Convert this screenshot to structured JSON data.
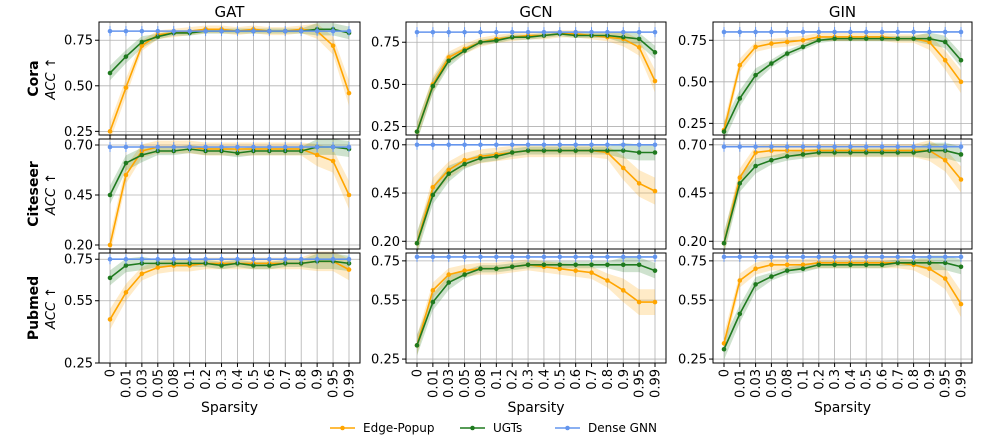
{
  "figure": {
    "col_titles": [
      "GAT",
      "GCN",
      "GIN"
    ],
    "row_labels": [
      "Cora",
      "Citeseer",
      "Pubmed"
    ],
    "metric_label": "ACC ↑",
    "xlabel": "Sparsity",
    "legend": [
      "Edge-Popup",
      "UGTs",
      "Dense GNN"
    ],
    "colors": {
      "edge_popup": "#FFA500",
      "ugts": "#1F7A1F",
      "dense": "#6495ED",
      "grid": "#b0b0b0"
    }
  },
  "chart_data": [
    {
      "type": "line",
      "row": "Cora",
      "col": "GAT",
      "ylim": [
        0.23,
        0.85
      ],
      "yticks": [
        0.25,
        0.5,
        0.75
      ],
      "x": [
        "0",
        "0.01",
        "0.03",
        "0.05",
        "0.08",
        "0.1",
        "0.2",
        "0.3",
        "0.4",
        "0.5",
        "0.6",
        "0.7",
        "0.8",
        "0.9",
        "0.95",
        "0.99"
      ],
      "series": [
        {
          "name": "Edge-Popup",
          "values": [
            0.25,
            0.49,
            0.72,
            0.78,
            0.79,
            0.8,
            0.81,
            0.81,
            0.8,
            0.81,
            0.8,
            0.8,
            0.81,
            0.8,
            0.72,
            0.46
          ]
        },
        {
          "name": "UGTs",
          "values": [
            0.57,
            0.66,
            0.74,
            0.77,
            0.79,
            0.79,
            0.8,
            0.8,
            0.8,
            0.8,
            0.8,
            0.8,
            0.8,
            0.81,
            0.81,
            0.79
          ]
        },
        {
          "name": "Dense GNN",
          "values": [
            0.8,
            0.8,
            0.8,
            0.8,
            0.8,
            0.8,
            0.8,
            0.8,
            0.8,
            0.8,
            0.8,
            0.8,
            0.8,
            0.8,
            0.8,
            0.8
          ]
        }
      ]
    },
    {
      "type": "line",
      "row": "Cora",
      "col": "GCN",
      "ylim": [
        0.2,
        0.87
      ],
      "yticks": [
        0.25,
        0.5,
        0.75
      ],
      "x": [
        "0",
        "0.01",
        "0.03",
        "0.05",
        "0.08",
        "0.1",
        "0.2",
        "0.3",
        "0.4",
        "0.5",
        "0.6",
        "0.7",
        "0.8",
        "0.9",
        "0.95",
        "0.99"
      ],
      "series": [
        {
          "name": "Edge-Popup",
          "values": [
            0.22,
            0.5,
            0.66,
            0.71,
            0.75,
            0.77,
            0.78,
            0.79,
            0.79,
            0.8,
            0.8,
            0.79,
            0.78,
            0.77,
            0.72,
            0.52
          ]
        },
        {
          "name": "UGTs",
          "values": [
            0.22,
            0.49,
            0.64,
            0.7,
            0.75,
            0.76,
            0.78,
            0.78,
            0.79,
            0.8,
            0.79,
            0.79,
            0.79,
            0.78,
            0.77,
            0.69
          ]
        },
        {
          "name": "Dense GNN",
          "values": [
            0.81,
            0.81,
            0.81,
            0.81,
            0.81,
            0.81,
            0.81,
            0.81,
            0.81,
            0.81,
            0.81,
            0.81,
            0.81,
            0.81,
            0.81,
            0.81
          ]
        }
      ]
    },
    {
      "type": "line",
      "row": "Cora",
      "col": "GIN",
      "ylim": [
        0.18,
        0.86
      ],
      "yticks": [
        0.25,
        0.5,
        0.75
      ],
      "x": [
        "0",
        "0.01",
        "0.03",
        "0.05",
        "0.08",
        "0.1",
        "0.2",
        "0.3",
        "0.4",
        "0.5",
        "0.6",
        "0.7",
        "0.8",
        "0.9",
        "0.95",
        "0.99"
      ],
      "series": [
        {
          "name": "Edge-Popup",
          "values": [
            0.21,
            0.6,
            0.71,
            0.73,
            0.74,
            0.75,
            0.77,
            0.77,
            0.77,
            0.77,
            0.77,
            0.76,
            0.76,
            0.74,
            0.63,
            0.5
          ]
        },
        {
          "name": "UGTs",
          "values": [
            0.2,
            0.4,
            0.54,
            0.61,
            0.67,
            0.71,
            0.75,
            0.76,
            0.76,
            0.76,
            0.76,
            0.76,
            0.76,
            0.76,
            0.74,
            0.63
          ]
        },
        {
          "name": "Dense GNN",
          "values": [
            0.8,
            0.8,
            0.8,
            0.8,
            0.8,
            0.8,
            0.8,
            0.8,
            0.8,
            0.8,
            0.8,
            0.8,
            0.8,
            0.8,
            0.8,
            0.8
          ]
        }
      ]
    },
    {
      "type": "line",
      "row": "Citeseer",
      "col": "GAT",
      "ylim": [
        0.18,
        0.73
      ],
      "yticks": [
        0.2,
        0.45,
        0.7
      ],
      "x": [
        "0",
        "0.01",
        "0.03",
        "0.05",
        "0.08",
        "0.1",
        "0.2",
        "0.3",
        "0.4",
        "0.5",
        "0.6",
        "0.7",
        "0.8",
        "0.9",
        "0.95",
        "0.99"
      ],
      "series": [
        {
          "name": "Edge-Popup",
          "values": [
            0.2,
            0.55,
            0.67,
            0.69,
            0.69,
            0.69,
            0.68,
            0.68,
            0.68,
            0.68,
            0.68,
            0.68,
            0.68,
            0.65,
            0.62,
            0.45
          ]
        },
        {
          "name": "UGTs",
          "values": [
            0.45,
            0.61,
            0.65,
            0.67,
            0.67,
            0.68,
            0.67,
            0.67,
            0.66,
            0.67,
            0.67,
            0.67,
            0.67,
            0.69,
            0.69,
            0.68
          ]
        },
        {
          "name": "Dense GNN",
          "values": [
            0.69,
            0.69,
            0.69,
            0.69,
            0.69,
            0.69,
            0.69,
            0.69,
            0.69,
            0.69,
            0.69,
            0.69,
            0.69,
            0.69,
            0.69,
            0.69
          ]
        }
      ]
    },
    {
      "type": "line",
      "row": "Citeseer",
      "col": "GCN",
      "ylim": [
        0.16,
        0.73
      ],
      "yticks": [
        0.2,
        0.45,
        0.7
      ],
      "x": [
        "0",
        "0.01",
        "0.03",
        "0.05",
        "0.08",
        "0.1",
        "0.2",
        "0.3",
        "0.4",
        "0.5",
        "0.6",
        "0.7",
        "0.8",
        "0.9",
        "0.95",
        "0.99"
      ],
      "series": [
        {
          "name": "Edge-Popup",
          "values": [
            0.19,
            0.48,
            0.57,
            0.62,
            0.64,
            0.65,
            0.66,
            0.67,
            0.67,
            0.67,
            0.67,
            0.67,
            0.66,
            0.58,
            0.5,
            0.46
          ]
        },
        {
          "name": "UGTs",
          "values": [
            0.19,
            0.44,
            0.55,
            0.6,
            0.63,
            0.64,
            0.66,
            0.67,
            0.67,
            0.67,
            0.67,
            0.67,
            0.67,
            0.67,
            0.66,
            0.66
          ]
        },
        {
          "name": "Dense GNN",
          "values": [
            0.7,
            0.7,
            0.7,
            0.7,
            0.7,
            0.7,
            0.7,
            0.7,
            0.7,
            0.7,
            0.7,
            0.7,
            0.7,
            0.7,
            0.7,
            0.7
          ]
        }
      ]
    },
    {
      "type": "line",
      "row": "Citeseer",
      "col": "GIN",
      "ylim": [
        0.16,
        0.73
      ],
      "yticks": [
        0.2,
        0.45,
        0.7
      ],
      "x": [
        "0",
        "0.01",
        "0.03",
        "0.05",
        "0.08",
        "0.1",
        "0.2",
        "0.3",
        "0.4",
        "0.5",
        "0.6",
        "0.7",
        "0.8",
        "0.9",
        "0.95",
        "0.99"
      ],
      "series": [
        {
          "name": "Edge-Popup",
          "values": [
            0.19,
            0.53,
            0.66,
            0.67,
            0.67,
            0.67,
            0.67,
            0.67,
            0.67,
            0.67,
            0.67,
            0.67,
            0.67,
            0.67,
            0.62,
            0.52
          ]
        },
        {
          "name": "UGTs",
          "values": [
            0.19,
            0.5,
            0.59,
            0.62,
            0.64,
            0.65,
            0.66,
            0.66,
            0.66,
            0.66,
            0.66,
            0.66,
            0.66,
            0.67,
            0.67,
            0.65
          ]
        },
        {
          "name": "Dense GNN",
          "values": [
            0.69,
            0.69,
            0.69,
            0.69,
            0.69,
            0.69,
            0.69,
            0.69,
            0.69,
            0.69,
            0.69,
            0.69,
            0.69,
            0.69,
            0.69,
            0.69
          ]
        }
      ]
    },
    {
      "type": "line",
      "row": "Pubmed",
      "col": "GAT",
      "ylim": [
        0.25,
        0.78
      ],
      "yticks": [
        0.25,
        0.55,
        0.75
      ],
      "x": [
        "0",
        "0.01",
        "0.03",
        "0.05",
        "0.08",
        "0.1",
        "0.2",
        "0.3",
        "0.4",
        "0.5",
        "0.6",
        "0.7",
        "0.8",
        "0.9",
        "0.95",
        "0.99"
      ],
      "series": [
        {
          "name": "Edge-Popup",
          "values": [
            0.46,
            0.59,
            0.68,
            0.71,
            0.72,
            0.72,
            0.73,
            0.73,
            0.73,
            0.73,
            0.73,
            0.73,
            0.73,
            0.74,
            0.74,
            0.7
          ]
        },
        {
          "name": "UGTs",
          "values": [
            0.66,
            0.72,
            0.73,
            0.73,
            0.73,
            0.73,
            0.73,
            0.72,
            0.73,
            0.72,
            0.72,
            0.73,
            0.73,
            0.74,
            0.74,
            0.73
          ]
        },
        {
          "name": "Dense GNN",
          "values": [
            0.75,
            0.75,
            0.75,
            0.75,
            0.75,
            0.75,
            0.75,
            0.75,
            0.75,
            0.75,
            0.75,
            0.75,
            0.75,
            0.75,
            0.75,
            0.75
          ]
        }
      ]
    },
    {
      "type": "line",
      "row": "Pubmed",
      "col": "GCN",
      "ylim": [
        0.23,
        0.79
      ],
      "yticks": [
        0.25,
        0.55,
        0.75
      ],
      "x": [
        "0",
        "0.01",
        "0.03",
        "0.05",
        "0.08",
        "0.1",
        "0.2",
        "0.3",
        "0.4",
        "0.5",
        "0.6",
        "0.7",
        "0.8",
        "0.9",
        "0.95",
        "0.99"
      ],
      "series": [
        {
          "name": "Edge-Popup",
          "values": [
            0.32,
            0.6,
            0.68,
            0.7,
            0.71,
            0.71,
            0.72,
            0.73,
            0.72,
            0.71,
            0.7,
            0.69,
            0.65,
            0.6,
            0.54,
            0.54
          ]
        },
        {
          "name": "UGTs",
          "values": [
            0.32,
            0.54,
            0.64,
            0.68,
            0.71,
            0.71,
            0.72,
            0.73,
            0.73,
            0.73,
            0.73,
            0.73,
            0.73,
            0.73,
            0.73,
            0.7
          ]
        },
        {
          "name": "Dense GNN",
          "values": [
            0.77,
            0.77,
            0.77,
            0.77,
            0.77,
            0.77,
            0.77,
            0.77,
            0.77,
            0.77,
            0.77,
            0.77,
            0.77,
            0.77,
            0.77,
            0.77
          ]
        }
      ]
    },
    {
      "type": "line",
      "row": "Pubmed",
      "col": "GIN",
      "ylim": [
        0.23,
        0.79
      ],
      "yticks": [
        0.25,
        0.55,
        0.75
      ],
      "x": [
        "0",
        "0.01",
        "0.03",
        "0.05",
        "0.08",
        "0.1",
        "0.2",
        "0.3",
        "0.4",
        "0.5",
        "0.6",
        "0.7",
        "0.8",
        "0.9",
        "0.95",
        "0.99"
      ],
      "series": [
        {
          "name": "Edge-Popup",
          "values": [
            0.33,
            0.65,
            0.71,
            0.73,
            0.73,
            0.73,
            0.74,
            0.74,
            0.74,
            0.74,
            0.74,
            0.74,
            0.73,
            0.71,
            0.66,
            0.53
          ]
        },
        {
          "name": "UGTs",
          "values": [
            0.3,
            0.48,
            0.63,
            0.67,
            0.7,
            0.71,
            0.73,
            0.73,
            0.73,
            0.73,
            0.73,
            0.74,
            0.74,
            0.74,
            0.74,
            0.72
          ]
        },
        {
          "name": "Dense GNN",
          "values": [
            0.77,
            0.77,
            0.77,
            0.77,
            0.77,
            0.77,
            0.77,
            0.77,
            0.77,
            0.77,
            0.77,
            0.77,
            0.77,
            0.77,
            0.77,
            0.77
          ]
        }
      ]
    }
  ]
}
